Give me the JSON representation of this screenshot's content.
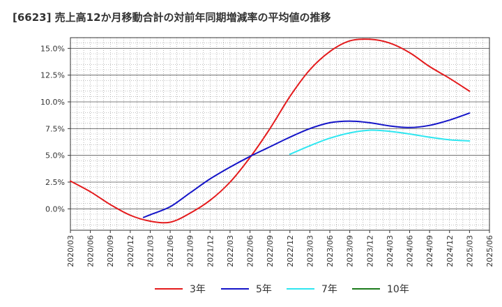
{
  "title": "[6623]  売上高12か月移動合計の対前年同期増減率の平均値の推移",
  "chart_data": {
    "type": "line",
    "title": "[6623]  売上高12か月移動合計の対前年同期増減率の平均値の推移",
    "xlabel": "",
    "ylabel": "",
    "ylim": [
      -2.0,
      16.0
    ],
    "yticks": [
      "0.0%",
      "2.5%",
      "5.0%",
      "7.5%",
      "10.0%",
      "12.5%",
      "15.0%"
    ],
    "xticks": [
      "2020/03",
      "2020/06",
      "2020/09",
      "2020/12",
      "2021/03",
      "2021/06",
      "2021/09",
      "2021/12",
      "2022/03",
      "2022/06",
      "2022/09",
      "2022/12",
      "2023/03",
      "2023/06",
      "2023/09",
      "2023/12",
      "2024/03",
      "2024/06",
      "2024/09",
      "2024/12",
      "2025/03",
      "2025/06"
    ],
    "grid": true,
    "legend_position": "bottom",
    "series": [
      {
        "name": "3年",
        "color": "#e41a1c",
        "points": [
          [
            "2020/03",
            2.6
          ],
          [
            "2020/06",
            1.6
          ],
          [
            "2020/09",
            0.4
          ],
          [
            "2020/12",
            -0.6
          ],
          [
            "2021/03",
            -1.15
          ],
          [
            "2021/06",
            -1.25
          ],
          [
            "2021/09",
            -0.4
          ],
          [
            "2021/12",
            0.8
          ],
          [
            "2022/03",
            2.5
          ],
          [
            "2022/06",
            4.8
          ],
          [
            "2022/09",
            7.5
          ],
          [
            "2022/12",
            10.5
          ],
          [
            "2023/03",
            13.0
          ],
          [
            "2023/06",
            14.7
          ],
          [
            "2023/09",
            15.7
          ],
          [
            "2023/12",
            15.85
          ],
          [
            "2024/03",
            15.5
          ],
          [
            "2024/06",
            14.6
          ],
          [
            "2024/09",
            13.3
          ],
          [
            "2024/12",
            12.2
          ],
          [
            "2025/03",
            11.0
          ]
        ]
      },
      {
        "name": "5年",
        "color": "#1414c8",
        "points": [
          [
            "2021/02",
            -0.8
          ],
          [
            "2021/03",
            -0.55
          ],
          [
            "2021/06",
            0.2
          ],
          [
            "2021/09",
            1.5
          ],
          [
            "2021/12",
            2.8
          ],
          [
            "2022/03",
            3.9
          ],
          [
            "2022/06",
            4.9
          ],
          [
            "2022/09",
            5.8
          ],
          [
            "2022/12",
            6.7
          ],
          [
            "2023/03",
            7.5
          ],
          [
            "2023/06",
            8.05
          ],
          [
            "2023/09",
            8.2
          ],
          [
            "2023/12",
            8.05
          ],
          [
            "2024/03",
            7.75
          ],
          [
            "2024/06",
            7.6
          ],
          [
            "2024/09",
            7.8
          ],
          [
            "2024/12",
            8.3
          ],
          [
            "2025/03",
            8.95
          ]
        ]
      },
      {
        "name": "7年",
        "color": "#2ee6f0",
        "points": [
          [
            "2022/12",
            5.1
          ],
          [
            "2023/03",
            5.9
          ],
          [
            "2023/06",
            6.6
          ],
          [
            "2023/09",
            7.1
          ],
          [
            "2023/12",
            7.35
          ],
          [
            "2024/03",
            7.25
          ],
          [
            "2024/06",
            7.0
          ],
          [
            "2024/09",
            6.7
          ],
          [
            "2024/12",
            6.45
          ],
          [
            "2025/03",
            6.35
          ]
        ]
      },
      {
        "name": "10年",
        "color": "#1a7a1a",
        "points": []
      }
    ]
  }
}
